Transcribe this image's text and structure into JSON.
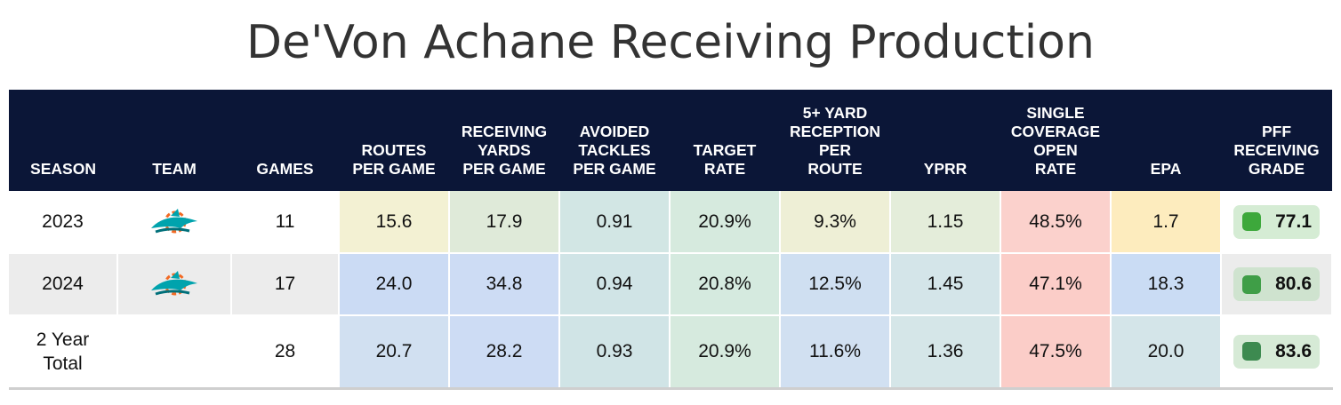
{
  "title": "De'Von Achane Receiving Production",
  "headers": {
    "season": "SEASON",
    "team": "TEAM",
    "games": "GAMES",
    "routes": [
      "ROUTES",
      "PER GAME"
    ],
    "rec_yards": [
      "RECEIVING",
      "YARDS",
      "PER GAME"
    ],
    "avoided": [
      "AVOIDED",
      "TACKLES",
      "PER GAME"
    ],
    "target": [
      "TARGET",
      "RATE"
    ],
    "five_yard": [
      "5+ YARD",
      "RECEPTION",
      "PER",
      "ROUTE"
    ],
    "yprr": "YPRR",
    "single_cov": [
      "SINGLE",
      "COVERAGE",
      "OPEN",
      "RATE"
    ],
    "epa": "EPA",
    "grade": [
      "PFF",
      "RECEIVING",
      "GRADE"
    ]
  },
  "team_logo_icon": "dolphins-logo-icon",
  "rows": [
    {
      "season": "2023",
      "games": "11",
      "routes": "15.6",
      "rec_yards": "17.9",
      "avoided": "0.91",
      "target": "20.9%",
      "five_yard": "9.3%",
      "yprr": "1.15",
      "single_cov": "48.5%",
      "epa": "1.7",
      "grade": "77.1",
      "colors": {
        "routes": "#f3f1d3",
        "rec_yards": "#dfead9",
        "avoided": "#d2e6e4",
        "target": "#d6eade",
        "five_yard": "#eeefd6",
        "yprr": "#e4edda",
        "single_cov": "#fbd1cc",
        "epa": "#fdecbe",
        "grade_bg": "#d5ecd4",
        "grade_dot": "#3da83b"
      }
    },
    {
      "season": "2024",
      "games": "17",
      "routes": "24.0",
      "rec_yards": "34.8",
      "avoided": "0.94",
      "target": "20.8%",
      "five_yard": "12.5%",
      "yprr": "1.45",
      "single_cov": "47.1%",
      "epa": "18.3",
      "grade": "80.6",
      "colors": {
        "routes": "#cbdbf4",
        "rec_yards": "#cddcf4",
        "avoided": "#d0e4e6",
        "target": "#d5eadf",
        "five_yard": "#cfdff1",
        "yprr": "#d4e5e9",
        "single_cov": "#fbcdc8",
        "epa": "#cadcf4",
        "grade_bg": "#cfe3cf",
        "grade_dot": "#3f9e47"
      }
    },
    {
      "season": "2 Year Total",
      "games": "28",
      "routes": "20.7",
      "rec_yards": "28.2",
      "avoided": "0.93",
      "target": "20.9%",
      "five_yard": "11.6%",
      "yprr": "1.36",
      "single_cov": "47.5%",
      "epa": "20.0",
      "grade": "83.6",
      "colors": {
        "routes": "#d1e0f1",
        "rec_yards": "#cddcf4",
        "avoided": "#d0e4e6",
        "target": "#d6eade",
        "five_yard": "#d1e0f1",
        "yprr": "#d5e6e8",
        "single_cov": "#fbcdc8",
        "epa": "#d4e5e9",
        "grade_bg": "#d6ead6",
        "grade_dot": "#3d8a50"
      }
    }
  ]
}
